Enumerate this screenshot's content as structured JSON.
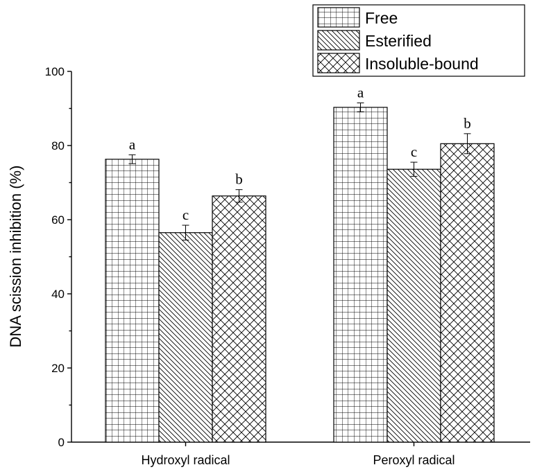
{
  "chart_data": {
    "type": "bar",
    "categories": [
      "Hydroxyl radical",
      "Peroxyl radical"
    ],
    "series": [
      {
        "name": "Free",
        "pattern": "grid",
        "values": [
          76.3,
          90.3
        ],
        "errors": [
          1.2,
          1.2
        ],
        "sig": [
          "a",
          "a"
        ]
      },
      {
        "name": "Esterified",
        "pattern": "diagonal",
        "values": [
          56.5,
          73.6
        ],
        "errors": [
          2.0,
          1.9
        ],
        "sig": [
          "c",
          "c"
        ]
      },
      {
        "name": "Insoluble-bound",
        "pattern": "crosshatch",
        "values": [
          66.4,
          80.5
        ],
        "errors": [
          1.7,
          2.7
        ],
        "sig": [
          "b",
          "b"
        ]
      }
    ],
    "ylabel": "DNA scission inhibition (%)",
    "xlabel": "",
    "ylim": [
      0,
      100
    ],
    "yticks": [
      0,
      20,
      40,
      60,
      80,
      100
    ],
    "grid": false,
    "legend_position": "top-right",
    "colors": {
      "pattern": "#000000",
      "background": "#ffffff"
    }
  }
}
